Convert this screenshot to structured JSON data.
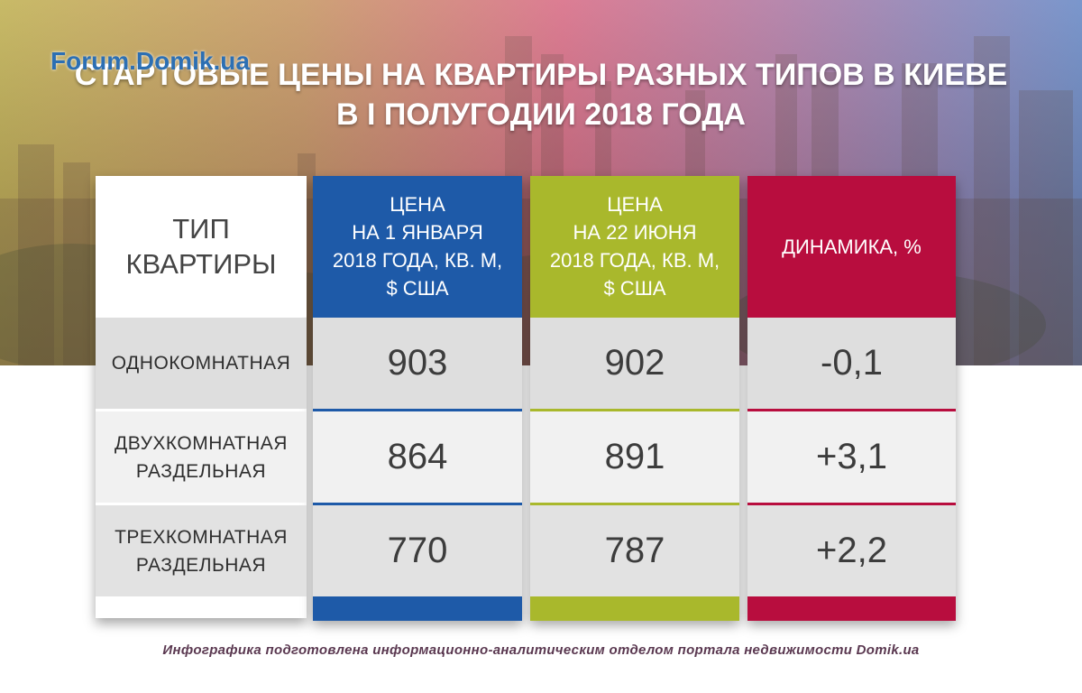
{
  "watermark": {
    "text": "Forum.Domik.ua"
  },
  "title": {
    "line1": "СТАРТОВЫЕ ЦЕНЫ НА КВАРТИРЫ РАЗНЫХ ТИПОВ В КИЕВЕ",
    "line2": "В I ПОЛУГОДИИ 2018 ГОДА"
  },
  "table": {
    "headers": {
      "type": {
        "line1": "ТИП",
        "line2": "КВАРТИРЫ"
      },
      "jan": {
        "line1": "ЦЕНА",
        "line2": "НА 1 ЯНВАРЯ",
        "line3": "2018 ГОДА, КВ. М,",
        "line4": "$ США"
      },
      "jun": {
        "line1": "ЦЕНА",
        "line2": "НА 22 ИЮНЯ",
        "line3": "2018 ГОДА, КВ. М,",
        "line4": "$ США"
      },
      "dyn": "ДИНАМИКА, %"
    },
    "rows": [
      {
        "type_line1": "ОДНОКОМНАТНАЯ",
        "type_line2": "",
        "jan": "903",
        "jun": "902",
        "dyn": "-0,1"
      },
      {
        "type_line1": "ДВУХКОМНАТНАЯ",
        "type_line2": "РАЗДЕЛЬНАЯ",
        "jan": "864",
        "jun": "891",
        "dyn": "+3,1"
      },
      {
        "type_line1": "ТРЕХКОМНАТНАЯ",
        "type_line2": "РАЗДЕЛЬНАЯ",
        "jan": "770",
        "jun": "787",
        "dyn": "+2,2"
      }
    ]
  },
  "footer": "Инфографика подготовлена информационно-аналитическим отделом портала недвижимости Domik.ua",
  "colors": {
    "jan": "#1e5aa8",
    "jun": "#a9b82c",
    "dyn": "#b80d3e",
    "footer": "#5a3850"
  }
}
